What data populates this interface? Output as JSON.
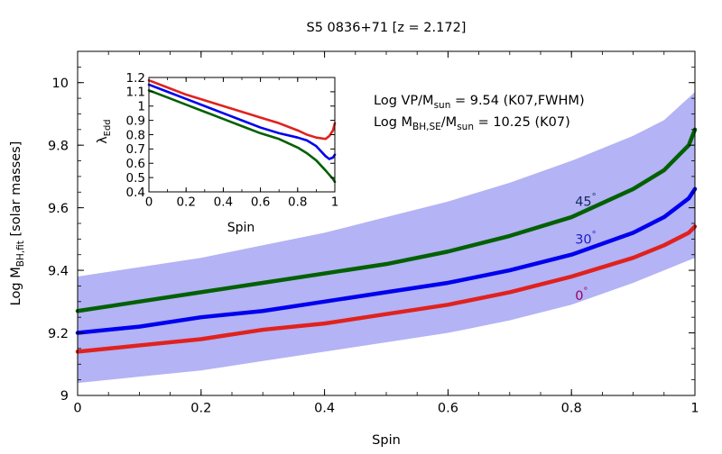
{
  "title": "S5 0836+71  [z = 2.172]",
  "annotations": {
    "line1": {
      "prefix": "Log VP/M",
      "sub": "sun",
      "suffix": " = 9.54 (K07,FWHM)"
    },
    "line2": {
      "prefix": "Log M",
      "sub": "BH,SE",
      "mid": "/M",
      "sub2": "sun",
      "suffix": " = 10.25 (K07)"
    }
  },
  "colors": {
    "band": "#b3b3f5",
    "red": "#e0221e",
    "blue": "#0000ee",
    "green": "#036003",
    "label_red": "#990066",
    "label_blue": "#1a1acc",
    "label_green": "#1a2a66"
  },
  "chart_data": [
    {
      "type": "line",
      "xlabel": "Spin",
      "ylabel": {
        "main": "Log M",
        "sub": "BH,fit",
        "suffix": "  [solar masses]"
      },
      "xlim": [
        0,
        1
      ],
      "ylim": [
        9.0,
        10.1
      ],
      "xticks": [
        "0",
        "0.2",
        "0.4",
        "0.6",
        "0.8",
        "1"
      ],
      "yticks": [
        "9",
        "9.2",
        "9.4",
        "9.6",
        "9.8",
        "10"
      ],
      "band": {
        "x": [
          0,
          0.1,
          0.2,
          0.3,
          0.4,
          0.5,
          0.6,
          0.7,
          0.8,
          0.9,
          0.95,
          1.0
        ],
        "upper": [
          9.38,
          9.41,
          9.44,
          9.48,
          9.52,
          9.57,
          9.62,
          9.68,
          9.75,
          9.83,
          9.88,
          9.97
        ],
        "lower": [
          9.04,
          9.06,
          9.08,
          9.11,
          9.14,
          9.17,
          9.2,
          9.24,
          9.29,
          9.36,
          9.4,
          9.44
        ]
      },
      "series": [
        {
          "name": "45°",
          "color_key": "green",
          "x": [
            0,
            0.1,
            0.2,
            0.3,
            0.4,
            0.5,
            0.6,
            0.7,
            0.8,
            0.9,
            0.95,
            0.99,
            1.0
          ],
          "y": [
            9.27,
            9.3,
            9.33,
            9.36,
            9.39,
            9.42,
            9.46,
            9.51,
            9.57,
            9.66,
            9.72,
            9.8,
            9.85
          ]
        },
        {
          "name": "30°",
          "color_key": "blue",
          "x": [
            0,
            0.1,
            0.2,
            0.3,
            0.4,
            0.5,
            0.6,
            0.7,
            0.8,
            0.9,
            0.95,
            0.99,
            1.0
          ],
          "y": [
            9.2,
            9.22,
            9.25,
            9.27,
            9.3,
            9.33,
            9.36,
            9.4,
            9.45,
            9.52,
            9.57,
            9.63,
            9.66
          ]
        },
        {
          "name": "0°",
          "color_key": "red",
          "x": [
            0,
            0.1,
            0.2,
            0.3,
            0.4,
            0.5,
            0.6,
            0.7,
            0.8,
            0.9,
            0.95,
            0.99,
            1.0
          ],
          "y": [
            9.14,
            9.16,
            9.18,
            9.21,
            9.23,
            9.26,
            9.29,
            9.33,
            9.38,
            9.44,
            9.48,
            9.52,
            9.54
          ]
        }
      ],
      "series_labels": [
        {
          "text": "45",
          "deg": "°",
          "x": 0.8,
          "y": 9.62,
          "color_key": "label_green"
        },
        {
          "text": "30",
          "deg": "°",
          "x": 0.8,
          "y": 9.5,
          "color_key": "label_blue"
        },
        {
          "text": "0",
          "deg": "°",
          "x": 0.8,
          "y": 9.32,
          "color_key": "label_red"
        }
      ]
    },
    {
      "type": "line",
      "xlabel": "Spin",
      "ylabel": {
        "main": "λ",
        "sub": "Edd"
      },
      "xlim": [
        0,
        1
      ],
      "ylim": [
        0.4,
        1.2
      ],
      "xticks": [
        "0",
        "0.2",
        "0.4",
        "0.6",
        "0.8",
        "1"
      ],
      "yticks": [
        "0.4",
        "0.5",
        "0.6",
        "0.7",
        "0.8",
        "0.9",
        "1",
        "1.1",
        "1.2"
      ],
      "series": [
        {
          "color_key": "red",
          "x": [
            0,
            0.1,
            0.2,
            0.3,
            0.4,
            0.5,
            0.6,
            0.7,
            0.8,
            0.85,
            0.9,
            0.95,
            0.97,
            0.99,
            1.0
          ],
          "y": [
            1.18,
            1.13,
            1.08,
            1.04,
            1.0,
            0.96,
            0.92,
            0.88,
            0.83,
            0.8,
            0.78,
            0.77,
            0.79,
            0.83,
            0.88
          ]
        },
        {
          "color_key": "blue",
          "x": [
            0,
            0.1,
            0.2,
            0.3,
            0.4,
            0.5,
            0.6,
            0.7,
            0.8,
            0.85,
            0.9,
            0.95,
            0.97,
            0.99,
            1.0
          ],
          "y": [
            1.15,
            1.1,
            1.05,
            1.0,
            0.95,
            0.9,
            0.85,
            0.81,
            0.78,
            0.76,
            0.72,
            0.65,
            0.63,
            0.64,
            0.66
          ]
        },
        {
          "color_key": "green",
          "x": [
            0,
            0.1,
            0.2,
            0.3,
            0.4,
            0.5,
            0.6,
            0.7,
            0.8,
            0.85,
            0.9,
            0.95,
            0.97,
            0.99,
            1.0
          ],
          "y": [
            1.11,
            1.06,
            1.01,
            0.96,
            0.91,
            0.86,
            0.81,
            0.77,
            0.71,
            0.67,
            0.62,
            0.55,
            0.52,
            0.49,
            0.47
          ]
        }
      ]
    }
  ]
}
